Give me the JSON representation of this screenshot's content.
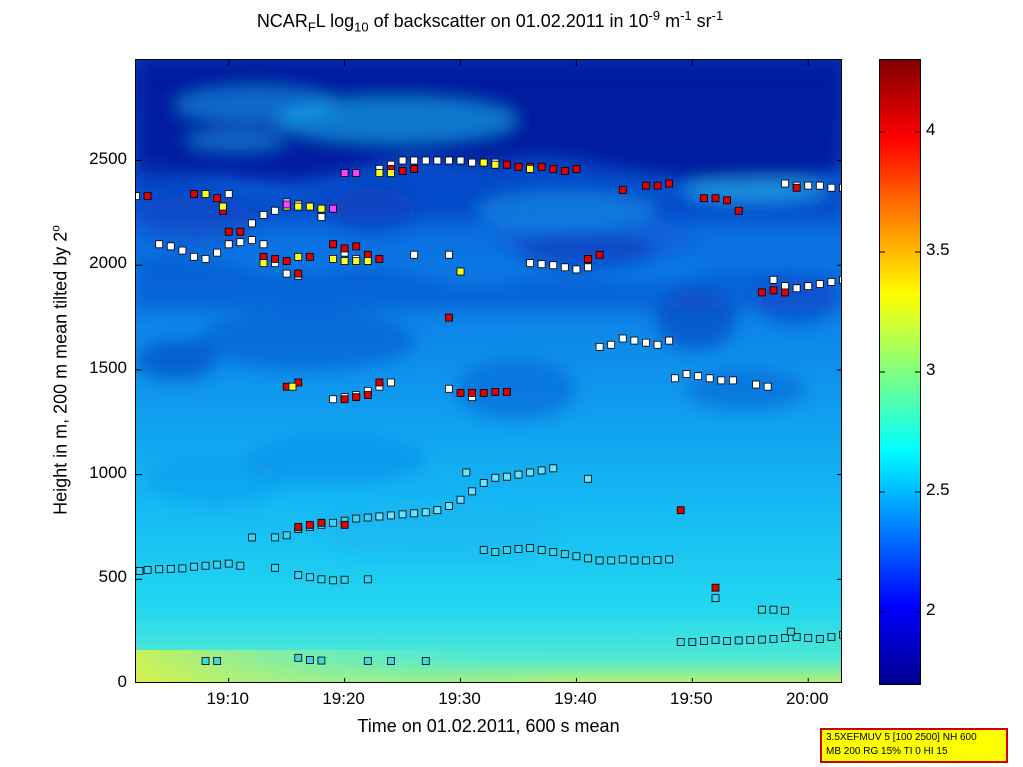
{
  "chart_data": {
    "type": "heatmap",
    "title": {
      "prefix": "NCAR",
      "sub1": "F",
      "mid1": "L log",
      "sub2": "10",
      "mid2": " of backscatter on 01.02.2011 in 10",
      "sup1": "-9",
      "mid3": " m",
      "sup2": "-1",
      "mid4": " sr",
      "sup3": "-1"
    },
    "xlabel": "Time on 01.02.2011, 600 s mean",
    "ylabel": {
      "text": "Height in m, 200 m mean tilted by 2",
      "deg": "o"
    },
    "x_range_minutes_after_19h": [
      2,
      63
    ],
    "ylim": [
      0,
      2980
    ],
    "x_ticks": [
      {
        "value": 10,
        "label": "19:10"
      },
      {
        "value": 20,
        "label": "19:20"
      },
      {
        "value": 30,
        "label": "19:30"
      },
      {
        "value": 40,
        "label": "19:40"
      },
      {
        "value": 50,
        "label": "19:50"
      },
      {
        "value": 60,
        "label": "20:00"
      }
    ],
    "y_ticks": [
      {
        "value": 0,
        "label": "0"
      },
      {
        "value": 500,
        "label": "500"
      },
      {
        "value": 1000,
        "label": "1000"
      },
      {
        "value": 1500,
        "label": "1500"
      },
      {
        "value": 2000,
        "label": "2000"
      },
      {
        "value": 2500,
        "label": "2500"
      }
    ],
    "colorbar": {
      "range": [
        1.7,
        4.3
      ],
      "ticks": [
        {
          "value": 2,
          "label": "2"
        },
        {
          "value": 2.5,
          "label": "2.5"
        },
        {
          "value": 3,
          "label": "3"
        },
        {
          "value": 3.5,
          "label": "3.5"
        },
        {
          "value": 4,
          "label": "4"
        }
      ],
      "colormap": "jet"
    },
    "marker_series": [
      {
        "values": [
          [
            2.3,
            540
          ],
          [
            3,
            545
          ],
          [
            4,
            548
          ],
          [
            5,
            550
          ],
          [
            6,
            552
          ],
          [
            7,
            560
          ],
          [
            8,
            565
          ],
          [
            9,
            570
          ],
          [
            10,
            575
          ],
          [
            11,
            565
          ]
        ]
      },
      {
        "values": [
          [
            14,
            555
          ]
        ]
      },
      {
        "values": [
          [
            8,
            110
          ],
          [
            9,
            110
          ],
          [
            16,
            125
          ],
          [
            17,
            115
          ],
          [
            18,
            112
          ],
          [
            22,
            110
          ],
          [
            24,
            110
          ],
          [
            27,
            110
          ]
        ]
      },
      {
        "values": [
          [
            16,
            520
          ],
          [
            17,
            510
          ],
          [
            18,
            500
          ],
          [
            19,
            495
          ],
          [
            20,
            498
          ],
          [
            22,
            500
          ]
        ]
      },
      {
        "values": [
          [
            14,
            700
          ],
          [
            15,
            710
          ],
          [
            16,
            740
          ],
          [
            17,
            750
          ],
          [
            18,
            760
          ],
          [
            19,
            770
          ],
          [
            20,
            780
          ],
          [
            21,
            790
          ],
          [
            22,
            795
          ],
          [
            23,
            800
          ],
          [
            24,
            805
          ],
          [
            25,
            810
          ],
          [
            26,
            815
          ],
          [
            27,
            820
          ],
          [
            28,
            830
          ],
          [
            29,
            850
          ],
          [
            30,
            880
          ],
          [
            31,
            920
          ],
          [
            32,
            960
          ],
          [
            33,
            985
          ],
          [
            34,
            990
          ],
          [
            35,
            1000
          ],
          [
            36,
            1010
          ],
          [
            37,
            1020
          ],
          [
            38,
            1030
          ]
        ]
      },
      {
        "values": [
          [
            12,
            700
          ],
          [
            30.5,
            1010
          ],
          [
            41,
            980
          ]
        ]
      },
      {
        "values": [
          [
            32,
            640
          ],
          [
            33,
            630
          ],
          [
            34,
            640
          ],
          [
            35,
            645
          ],
          [
            36,
            650
          ],
          [
            37,
            640
          ],
          [
            38,
            630
          ],
          [
            39,
            620
          ],
          [
            40,
            610
          ],
          [
            41,
            600
          ],
          [
            42,
            590
          ],
          [
            43,
            590
          ],
          [
            44,
            595
          ],
          [
            45,
            590
          ],
          [
            46,
            590
          ],
          [
            47,
            592
          ],
          [
            48,
            595
          ]
        ]
      },
      {
        "values": [
          [
            49,
            200
          ],
          [
            50,
            200
          ],
          [
            51,
            205
          ],
          [
            52,
            210
          ],
          [
            53,
            205
          ],
          [
            54,
            208
          ],
          [
            55,
            210
          ],
          [
            56,
            212
          ],
          [
            57,
            215
          ],
          [
            58,
            220
          ],
          [
            59,
            225
          ],
          [
            60,
            220
          ],
          [
            61,
            215
          ],
          [
            62,
            225
          ],
          [
            63,
            235
          ]
        ]
      },
      {
        "values": [
          [
            52,
            410
          ],
          [
            56,
            355
          ],
          [
            57,
            355
          ],
          [
            58,
            350
          ],
          [
            58.5,
            250
          ]
        ]
      },
      {
        "values": [
          [
            4,
            2100
          ],
          [
            5,
            2090
          ],
          [
            6,
            2070
          ],
          [
            7,
            2040
          ],
          [
            8,
            2030
          ],
          [
            9,
            2060
          ],
          [
            10,
            2100
          ],
          [
            11,
            2110
          ],
          [
            12,
            2120
          ],
          [
            13,
            2100
          ],
          [
            14,
            2010
          ],
          [
            15,
            1960
          ],
          [
            16,
            1950
          ]
        ]
      },
      {
        "values": [
          [
            26,
            2050
          ],
          [
            29,
            2050
          ],
          [
            36,
            2010
          ],
          [
            37,
            2005
          ],
          [
            38,
            2000
          ],
          [
            39,
            1990
          ],
          [
            40,
            1980
          ],
          [
            41,
            1990
          ]
        ]
      },
      {
        "values": [
          [
            42,
            1610
          ],
          [
            43,
            1620
          ],
          [
            44,
            1650
          ],
          [
            45,
            1640
          ],
          [
            46,
            1630
          ],
          [
            47,
            1620
          ],
          [
            48,
            1640
          ]
        ]
      },
      {
        "values": [
          [
            48.5,
            1460
          ],
          [
            49.5,
            1480
          ],
          [
            50.5,
            1470
          ],
          [
            51.5,
            1460
          ],
          [
            52.5,
            1450
          ],
          [
            53.5,
            1450
          ],
          [
            55.5,
            1430
          ],
          [
            56.5,
            1420
          ]
        ]
      },
      {
        "values": [
          [
            19,
            1360
          ],
          [
            20,
            1370
          ],
          [
            21,
            1380
          ],
          [
            22,
            1400
          ],
          [
            23,
            1420
          ],
          [
            24,
            1440
          ],
          [
            29,
            1410
          ],
          [
            31,
            1370
          ]
        ]
      },
      {
        "values": [
          [
            23,
            2460
          ],
          [
            24,
            2480
          ],
          [
            25,
            2500
          ],
          [
            26,
            2500
          ],
          [
            27,
            2500
          ],
          [
            28,
            2500
          ],
          [
            29,
            2500
          ],
          [
            30,
            2500
          ],
          [
            31,
            2490
          ],
          [
            32,
            2490
          ],
          [
            33,
            2490
          ],
          [
            34,
            2480
          ]
        ]
      },
      {
        "values": [
          [
            2,
            2330
          ],
          [
            10,
            2340
          ],
          [
            12,
            2200
          ],
          [
            13,
            2240
          ],
          [
            14,
            2260
          ],
          [
            15,
            2300
          ],
          [
            16,
            2290
          ],
          [
            17,
            2280
          ],
          [
            18,
            2230
          ],
          [
            19,
            2100
          ],
          [
            20,
            2060
          ],
          [
            21,
            2030
          ],
          [
            22,
            2020
          ]
        ]
      },
      {
        "values": [
          [
            58,
            2390
          ],
          [
            59,
            2380
          ],
          [
            60,
            2380
          ],
          [
            61,
            2380
          ],
          [
            62,
            2370
          ],
          [
            63,
            2370
          ],
          [
            57,
            1930
          ],
          [
            58,
            1900
          ],
          [
            59,
            1890
          ],
          [
            60,
            1900
          ],
          [
            61,
            1910
          ],
          [
            62,
            1920
          ],
          [
            63,
            1930
          ]
        ]
      }
    ],
    "red_markers": [
      {
        "values": [
          [
            3,
            2330
          ],
          [
            7,
            2340
          ],
          [
            9,
            2320
          ],
          [
            9.5,
            2260
          ],
          [
            10,
            2160
          ],
          [
            11,
            2160
          ],
          [
            13,
            2040
          ],
          [
            14,
            2030
          ],
          [
            15,
            2020
          ],
          [
            16,
            1960
          ],
          [
            17,
            2040
          ],
          [
            19,
            2100
          ],
          [
            20,
            2080
          ],
          [
            21,
            2090
          ],
          [
            22,
            2050
          ],
          [
            23,
            2030
          ]
        ]
      },
      {
        "values": [
          [
            24,
            2460
          ],
          [
            25,
            2450
          ],
          [
            26,
            2460
          ],
          [
            34,
            2480
          ],
          [
            35,
            2470
          ],
          [
            36,
            2470
          ],
          [
            37,
            2470
          ],
          [
            38,
            2460
          ],
          [
            39,
            2450
          ],
          [
            40,
            2460
          ],
          [
            41,
            2030
          ],
          [
            42,
            2050
          ]
        ]
      },
      {
        "values": [
          [
            44,
            2360
          ],
          [
            46,
            2380
          ],
          [
            47,
            2380
          ],
          [
            48,
            2390
          ],
          [
            51,
            2320
          ],
          [
            52,
            2320
          ],
          [
            53,
            2310
          ],
          [
            54,
            2260
          ],
          [
            56,
            1870
          ],
          [
            57,
            1880
          ],
          [
            58,
            1870
          ],
          [
            59,
            2370
          ]
        ]
      },
      {
        "values": [
          [
            16,
            750
          ],
          [
            17,
            760
          ],
          [
            18,
            770
          ],
          [
            20,
            760
          ],
          [
            15,
            1420
          ],
          [
            16,
            1440
          ],
          [
            20,
            1360
          ],
          [
            21,
            1370
          ],
          [
            22,
            1380
          ],
          [
            23,
            1440
          ],
          [
            30,
            1390
          ],
          [
            31,
            1390
          ],
          [
            32,
            1390
          ],
          [
            33,
            1395
          ],
          [
            34,
            1395
          ],
          [
            29,
            1750
          ],
          [
            49,
            830
          ],
          [
            52,
            460
          ]
        ]
      }
    ],
    "yellow_markers": [
      {
        "values": [
          [
            8,
            2340
          ],
          [
            9.5,
            2280
          ],
          [
            15,
            2280
          ],
          [
            16,
            2280
          ],
          [
            17,
            2280
          ],
          [
            18,
            2270
          ],
          [
            19,
            2030
          ],
          [
            20,
            2020
          ],
          [
            21,
            2020
          ],
          [
            22,
            2020
          ],
          [
            23,
            2440
          ],
          [
            24,
            2440
          ],
          [
            30,
            1970
          ],
          [
            32,
            2490
          ],
          [
            33,
            2480
          ],
          [
            36,
            2460
          ],
          [
            15.5,
            1420
          ],
          [
            13,
            2010
          ],
          [
            16,
            2040
          ]
        ]
      }
    ],
    "magenta_markers": [
      {
        "values": [
          [
            20,
            2440
          ],
          [
            21,
            2440
          ],
          [
            15,
            2290
          ],
          [
            19,
            2270
          ]
        ]
      }
    ]
  },
  "info_box": {
    "line1": "3.5XEFMUV 5 [100 2500] NH 600",
    "line2": "MB 200 RG 15% TI 0 HI 15"
  }
}
